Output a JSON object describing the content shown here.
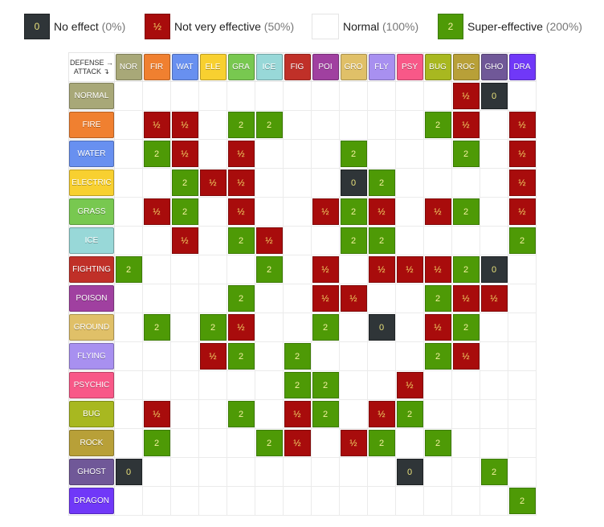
{
  "legend": [
    {
      "key": "zero",
      "symbol": "0",
      "label": "No effect",
      "pct": "(0%)"
    },
    {
      "key": "half",
      "symbol": "½",
      "label": "Not very effective",
      "pct": "(50%)"
    },
    {
      "key": "normal",
      "symbol": "",
      "label": "Normal",
      "pct": "(100%)"
    },
    {
      "key": "double",
      "symbol": "2",
      "label": "Super-effective",
      "pct": "(200%)"
    }
  ],
  "corner": {
    "defense": "DEFENSE →",
    "attack": "ATTACK ↴"
  },
  "colors": {
    "NOR": "#a8a878",
    "FIR": "#f08030",
    "WAT": "#6890f0",
    "ELE": "#f8d030",
    "GRA": "#78c850",
    "ICE": "#98d8d8",
    "FIG": "#c03028",
    "POI": "#a040a0",
    "GRO": "#e0c068",
    "FLY": "#a890f0",
    "PSY": "#f85888",
    "BUG": "#a8b820",
    "ROC": "#b8a038",
    "GHO": "#705898",
    "DRA": "#7038f8"
  },
  "defense_types": [
    "NOR",
    "FIR",
    "WAT",
    "ELE",
    "GRA",
    "ICE",
    "FIG",
    "POI",
    "GRO",
    "FLY",
    "PSY",
    "BUG",
    "ROC",
    "GHO",
    "DRA"
  ],
  "attack_types": [
    {
      "abbr": "NOR",
      "name": "NORMAL"
    },
    {
      "abbr": "FIR",
      "name": "FIRE"
    },
    {
      "abbr": "WAT",
      "name": "WATER"
    },
    {
      "abbr": "ELE",
      "name": "ELECTRIC"
    },
    {
      "abbr": "GRA",
      "name": "GRASS"
    },
    {
      "abbr": "ICE",
      "name": "ICE"
    },
    {
      "abbr": "FIG",
      "name": "FIGHTING"
    },
    {
      "abbr": "POI",
      "name": "POISON"
    },
    {
      "abbr": "GRO",
      "name": "GROUND"
    },
    {
      "abbr": "FLY",
      "name": "FLYING"
    },
    {
      "abbr": "PSY",
      "name": "PSYCHIC"
    },
    {
      "abbr": "BUG",
      "name": "BUG"
    },
    {
      "abbr": "ROC",
      "name": "ROCK"
    },
    {
      "abbr": "GHO",
      "name": "GHOST"
    },
    {
      "abbr": "DRA",
      "name": "DRAGON"
    }
  ],
  "matrix": [
    [
      "",
      "",
      "",
      "",
      "",
      "",
      "",
      "",
      "",
      "",
      "",
      "",
      "½",
      "0",
      ""
    ],
    [
      "",
      "½",
      "½",
      "",
      "2",
      "2",
      "",
      "",
      "",
      "",
      "",
      "2",
      "½",
      "",
      "½"
    ],
    [
      "",
      "2",
      "½",
      "",
      "½",
      "",
      "",
      "",
      "2",
      "",
      "",
      "",
      "2",
      "",
      "½"
    ],
    [
      "",
      "",
      "2",
      "½",
      "½",
      "",
      "",
      "",
      "0",
      "2",
      "",
      "",
      "",
      "",
      "½"
    ],
    [
      "",
      "½",
      "2",
      "",
      "½",
      "",
      "",
      "½",
      "2",
      "½",
      "",
      "½",
      "2",
      "",
      "½"
    ],
    [
      "",
      "",
      "½",
      "",
      "2",
      "½",
      "",
      "",
      "2",
      "2",
      "",
      "",
      "",
      "",
      "2"
    ],
    [
      "2",
      "",
      "",
      "",
      "",
      "2",
      "",
      "½",
      "",
      "½",
      "½",
      "½",
      "2",
      "0",
      ""
    ],
    [
      "",
      "",
      "",
      "",
      "2",
      "",
      "",
      "½",
      "½",
      "",
      "",
      "2",
      "½",
      "½",
      ""
    ],
    [
      "",
      "2",
      "",
      "2",
      "½",
      "",
      "",
      "2",
      "",
      "0",
      "",
      "½",
      "2",
      "",
      ""
    ],
    [
      "",
      "",
      "",
      "½",
      "2",
      "",
      "2",
      "",
      "",
      "",
      "",
      "2",
      "½",
      "",
      ""
    ],
    [
      "",
      "",
      "",
      "",
      "",
      "",
      "2",
      "2",
      "",
      "",
      "½",
      "",
      "",
      "",
      ""
    ],
    [
      "",
      "½",
      "",
      "",
      "2",
      "",
      "½",
      "2",
      "",
      "½",
      "2",
      "",
      "",
      "",
      ""
    ],
    [
      "",
      "2",
      "",
      "",
      "",
      "2",
      "½",
      "",
      "½",
      "2",
      "",
      "2",
      "",
      "",
      ""
    ],
    [
      "0",
      "",
      "",
      "",
      "",
      "",
      "",
      "",
      "",
      "",
      "0",
      "",
      "",
      "2",
      ""
    ],
    [
      "",
      "",
      "",
      "",
      "",
      "",
      "",
      "",
      "",
      "",
      "",
      "",
      "",
      "",
      "2"
    ]
  ]
}
